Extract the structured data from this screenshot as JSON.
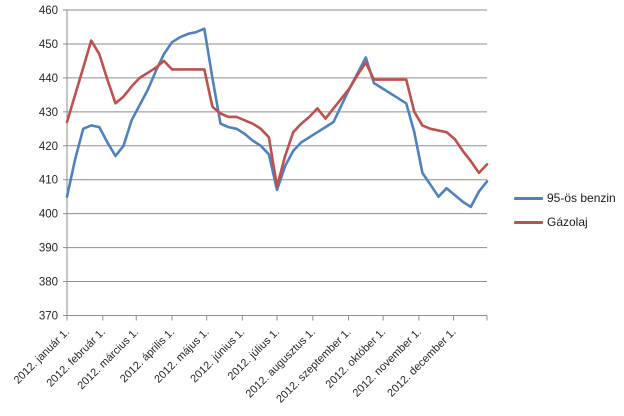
{
  "chart_data": {
    "type": "line",
    "title": "",
    "xlabel": "",
    "ylabel": "",
    "ylim": [
      370,
      460
    ],
    "ytick_step": 10,
    "yticks": [
      460,
      450,
      440,
      430,
      420,
      410,
      400,
      390,
      380,
      370
    ],
    "grid": true,
    "legend_position": "right",
    "x_unit": "weeks_from_2012_01_01",
    "x_total_weeks": 52,
    "x_tick_labels": [
      "2012. január 1.",
      "2012. február 1.",
      "2012. március 1.",
      "2012. április 1.",
      "2012. május 1.",
      "2012. június 1.",
      "2012. július 1.",
      "2012. augusztus 1.",
      "2012. szeptember 1.",
      "2012. október 1.",
      "2012. november 1.",
      "2012. december 1."
    ],
    "x_tick_weeks": [
      0,
      4.43,
      8.57,
      13,
      17.29,
      21.71,
      26,
      30.43,
      34.86,
      39.14,
      43.57,
      47.86
    ],
    "series": [
      {
        "name": "95-ös benzin",
        "color": "#4F81BD",
        "values": [
          405,
          416,
          425,
          426,
          425.5,
          421,
          417,
          420,
          427.5,
          432,
          436.5,
          442,
          447,
          450.5,
          452,
          453,
          453.5,
          454.5,
          440,
          426.5,
          425.5,
          425,
          423.5,
          421.5,
          420,
          417.5,
          407,
          414,
          418.5,
          421,
          422.5,
          424,
          425.5,
          427,
          432,
          437,
          441.5,
          446,
          438.5,
          437,
          435.5,
          434,
          432.5,
          424,
          412,
          408.5,
          405,
          407.5,
          405.5,
          403.5,
          402,
          406.5,
          409.5
        ]
      },
      {
        "name": "Gázolaj",
        "color": "#C0504D",
        "values": [
          427,
          435,
          443,
          451,
          447,
          439.5,
          432.5,
          434.5,
          437.5,
          440,
          441.5,
          443,
          445,
          442.5,
          442.5,
          442.5,
          442.5,
          442.5,
          431.5,
          429.5,
          428.5,
          428.5,
          427.5,
          426.5,
          425,
          422.5,
          408,
          417,
          424,
          426.5,
          428.5,
          431,
          428,
          431,
          434,
          437,
          441,
          444.5,
          439.5,
          439.5,
          439.5,
          439.5,
          439.5,
          430,
          426,
          425,
          424.5,
          424,
          422,
          418.5,
          415.5,
          412,
          414.5
        ]
      }
    ],
    "axis_color": "#8e8e8e",
    "gridline_color": "#8e8e8e",
    "text_color": "#262626"
  },
  "legend": {
    "items": [
      {
        "label": "95-ös benzin"
      },
      {
        "label": "Gázolaj"
      }
    ]
  }
}
